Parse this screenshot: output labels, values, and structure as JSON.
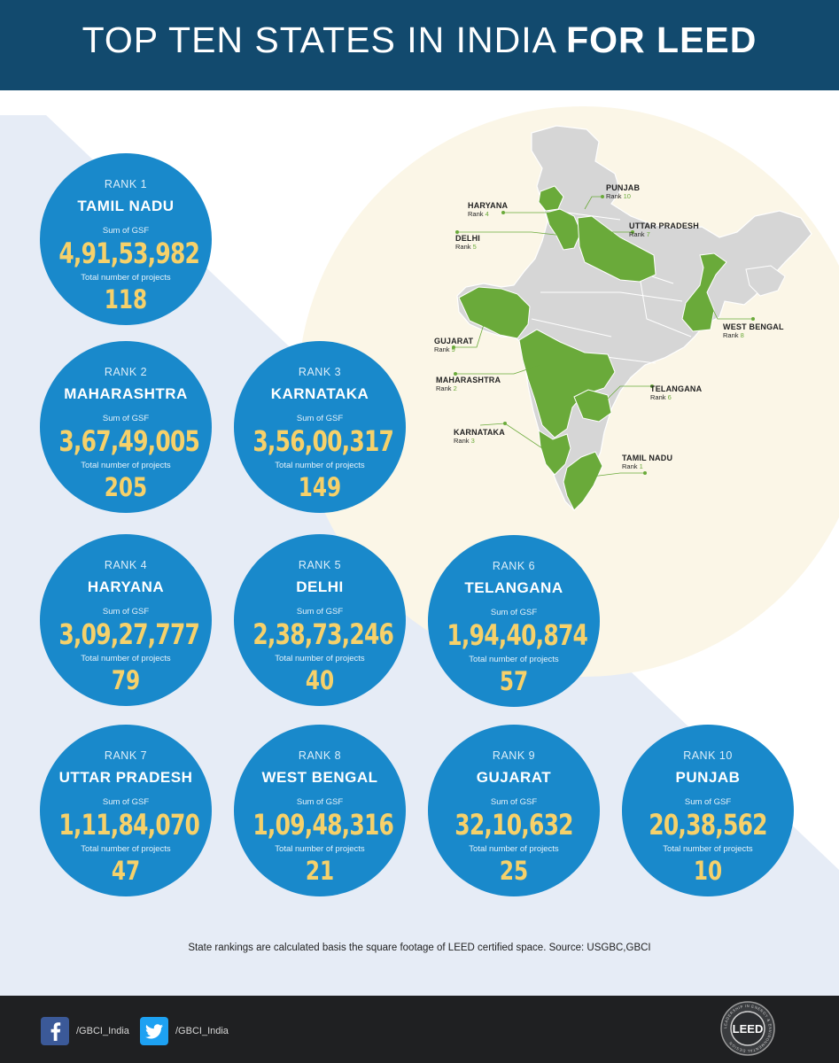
{
  "header": {
    "title_light": "TOP TEN STATES IN INDIA ",
    "title_bold": "FOR LEED"
  },
  "colors": {
    "header_bg": "#124a6e",
    "circle_bg": "#1989cb",
    "value_gold": "#f6d16a",
    "highlight_green": "#6aaa3a",
    "map_grey": "#d6d6d6",
    "footer_bg": "#1f2022"
  },
  "labels": {
    "gsf_label": "Sum of GSF",
    "projects_label": "Total number of projects"
  },
  "states": [
    {
      "rank": "RANK 1",
      "name": "TAMIL NADU",
      "gsf": "4,91,53,982",
      "projects": "118"
    },
    {
      "rank": "RANK 2",
      "name": "MAHARASHTRA",
      "gsf": "3,67,49,005",
      "projects": "205"
    },
    {
      "rank": "RANK 3",
      "name": "KARNATAKA",
      "gsf": "3,56,00,317",
      "projects": "149"
    },
    {
      "rank": "RANK 4",
      "name": "HARYANA",
      "gsf": "3,09,27,777",
      "projects": "79"
    },
    {
      "rank": "RANK 5",
      "name": "DELHI",
      "gsf": "2,38,73,246",
      "projects": "40"
    },
    {
      "rank": "RANK 6",
      "name": "TELANGANA",
      "gsf": "1,94,40,874",
      "projects": "57"
    },
    {
      "rank": "RANK 7",
      "name": "UTTAR PRADESH",
      "gsf": "1,11,84,070",
      "projects": "47"
    },
    {
      "rank": "RANK 8",
      "name": "WEST BENGAL",
      "gsf": "1,09,48,316",
      "projects": "21"
    },
    {
      "rank": "RANK 9",
      "name": "GUJARAT",
      "gsf": "32,10,632",
      "projects": "25"
    },
    {
      "rank": "RANK 10",
      "name": "PUNJAB",
      "gsf": "20,38,562",
      "projects": "10"
    }
  ],
  "map_labels": [
    {
      "name": "PUNJAB",
      "rank_word": "Rank",
      "rank_num": "10"
    },
    {
      "name": "HARYANA",
      "rank_word": "Rank",
      "rank_num": "4"
    },
    {
      "name": "UTTAR PRADESH",
      "rank_word": "Rank",
      "rank_num": "7"
    },
    {
      "name": "DELHI",
      "rank_word": "Rank",
      "rank_num": "5"
    },
    {
      "name": "WEST BENGAL",
      "rank_word": "Rank",
      "rank_num": "8"
    },
    {
      "name": "GUJARAT",
      "rank_word": "Rank",
      "rank_num": "9"
    },
    {
      "name": "MAHARASHTRA",
      "rank_word": "Rank",
      "rank_num": "2"
    },
    {
      "name": "TELANGANA",
      "rank_word": "Rank",
      "rank_num": "6"
    },
    {
      "name": "KARNATAKA",
      "rank_word": "Rank",
      "rank_num": "3"
    },
    {
      "name": "TAMIL NADU",
      "rank_word": "Rank",
      "rank_num": "1"
    }
  ],
  "footnote": "State rankings are calculated basis the square footage of LEED certified space. Source: USGBC,GBCI",
  "footer": {
    "facebook_handle": "/GBCI_India",
    "twitter_handle": "/GBCI_India",
    "logo_text": "LEED",
    "logo_ring_text": "LEADERSHIP IN ENERGY & ENVIRONMENTAL DESIGN",
    "facebook_icon": "facebook-icon",
    "twitter_icon": "twitter-icon"
  }
}
